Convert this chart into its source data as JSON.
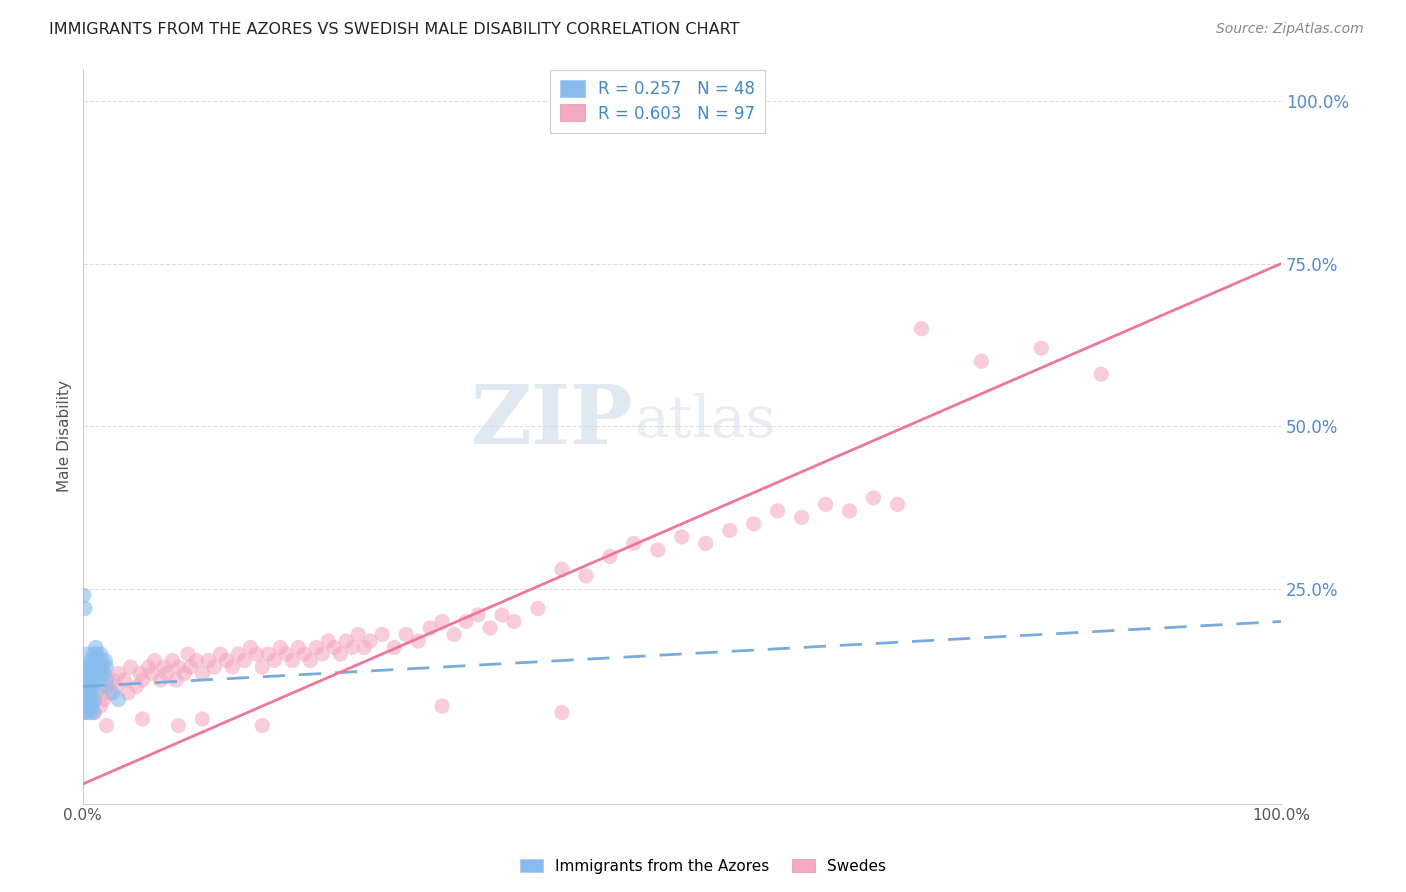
{
  "title": "IMMIGRANTS FROM THE AZORES VS SWEDISH MALE DISABILITY CORRELATION CHART",
  "source": "Source: ZipAtlas.com",
  "ylabel": "Male Disability",
  "legend_label1": "Immigrants from the Azores",
  "legend_label2": "Swedes",
  "r1": 0.257,
  "n1": 48,
  "r2": 0.603,
  "n2": 97,
  "blue_color": "#88bbee",
  "pink_color": "#f4aabe",
  "blue_line_color": "#77aadd",
  "pink_line_color": "#ee7799",
  "blue_line_x0": 0.0,
  "blue_line_y0": 0.1,
  "blue_line_x1": 1.0,
  "blue_line_y1": 0.2,
  "pink_line_x0": 0.0,
  "pink_line_y0": -0.05,
  "pink_line_x1": 1.0,
  "pink_line_y1": 0.75,
  "blue_scatter": [
    [
      0.001,
      0.08
    ],
    [
      0.002,
      0.1
    ],
    [
      0.002,
      0.13
    ],
    [
      0.003,
      0.09
    ],
    [
      0.003,
      0.12
    ],
    [
      0.004,
      0.11
    ],
    [
      0.004,
      0.15
    ],
    [
      0.005,
      0.1
    ],
    [
      0.005,
      0.13
    ],
    [
      0.006,
      0.09
    ],
    [
      0.006,
      0.12
    ],
    [
      0.007,
      0.11
    ],
    [
      0.007,
      0.14
    ],
    [
      0.008,
      0.1
    ],
    [
      0.008,
      0.13
    ],
    [
      0.009,
      0.12
    ],
    [
      0.009,
      0.15
    ],
    [
      0.01,
      0.11
    ],
    [
      0.01,
      0.14
    ],
    [
      0.011,
      0.13
    ],
    [
      0.011,
      0.16
    ],
    [
      0.012,
      0.12
    ],
    [
      0.012,
      0.15
    ],
    [
      0.013,
      0.14
    ],
    [
      0.014,
      0.13
    ],
    [
      0.015,
      0.12
    ],
    [
      0.015,
      0.15
    ],
    [
      0.016,
      0.14
    ],
    [
      0.017,
      0.13
    ],
    [
      0.018,
      0.12
    ],
    [
      0.019,
      0.14
    ],
    [
      0.02,
      0.13
    ],
    [
      0.001,
      0.06
    ],
    [
      0.002,
      0.07
    ],
    [
      0.003,
      0.06
    ],
    [
      0.004,
      0.08
    ],
    [
      0.005,
      0.07
    ],
    [
      0.006,
      0.06
    ],
    [
      0.007,
      0.08
    ],
    [
      0.008,
      0.07
    ],
    [
      0.009,
      0.06
    ],
    [
      0.01,
      0.08
    ],
    [
      0.015,
      0.1
    ],
    [
      0.02,
      0.11
    ],
    [
      0.025,
      0.09
    ],
    [
      0.001,
      0.24
    ],
    [
      0.002,
      0.22
    ],
    [
      0.03,
      0.08
    ]
  ],
  "pink_scatter": [
    [
      0.005,
      0.07
    ],
    [
      0.008,
      0.08
    ],
    [
      0.01,
      0.06
    ],
    [
      0.012,
      0.09
    ],
    [
      0.015,
      0.07
    ],
    [
      0.018,
      0.08
    ],
    [
      0.02,
      0.1
    ],
    [
      0.022,
      0.09
    ],
    [
      0.025,
      0.11
    ],
    [
      0.028,
      0.1
    ],
    [
      0.03,
      0.12
    ],
    [
      0.035,
      0.11
    ],
    [
      0.038,
      0.09
    ],
    [
      0.04,
      0.13
    ],
    [
      0.045,
      0.1
    ],
    [
      0.048,
      0.12
    ],
    [
      0.05,
      0.11
    ],
    [
      0.055,
      0.13
    ],
    [
      0.058,
      0.12
    ],
    [
      0.06,
      0.14
    ],
    [
      0.065,
      0.11
    ],
    [
      0.068,
      0.13
    ],
    [
      0.07,
      0.12
    ],
    [
      0.075,
      0.14
    ],
    [
      0.078,
      0.11
    ],
    [
      0.08,
      0.13
    ],
    [
      0.085,
      0.12
    ],
    [
      0.088,
      0.15
    ],
    [
      0.09,
      0.13
    ],
    [
      0.095,
      0.14
    ],
    [
      0.1,
      0.12
    ],
    [
      0.105,
      0.14
    ],
    [
      0.11,
      0.13
    ],
    [
      0.115,
      0.15
    ],
    [
      0.12,
      0.14
    ],
    [
      0.125,
      0.13
    ],
    [
      0.13,
      0.15
    ],
    [
      0.135,
      0.14
    ],
    [
      0.14,
      0.16
    ],
    [
      0.145,
      0.15
    ],
    [
      0.15,
      0.13
    ],
    [
      0.155,
      0.15
    ],
    [
      0.16,
      0.14
    ],
    [
      0.165,
      0.16
    ],
    [
      0.17,
      0.15
    ],
    [
      0.175,
      0.14
    ],
    [
      0.18,
      0.16
    ],
    [
      0.185,
      0.15
    ],
    [
      0.19,
      0.14
    ],
    [
      0.195,
      0.16
    ],
    [
      0.2,
      0.15
    ],
    [
      0.205,
      0.17
    ],
    [
      0.21,
      0.16
    ],
    [
      0.215,
      0.15
    ],
    [
      0.22,
      0.17
    ],
    [
      0.225,
      0.16
    ],
    [
      0.23,
      0.18
    ],
    [
      0.235,
      0.16
    ],
    [
      0.24,
      0.17
    ],
    [
      0.25,
      0.18
    ],
    [
      0.26,
      0.16
    ],
    [
      0.27,
      0.18
    ],
    [
      0.28,
      0.17
    ],
    [
      0.29,
      0.19
    ],
    [
      0.3,
      0.2
    ],
    [
      0.31,
      0.18
    ],
    [
      0.32,
      0.2
    ],
    [
      0.33,
      0.21
    ],
    [
      0.34,
      0.19
    ],
    [
      0.35,
      0.21
    ],
    [
      0.36,
      0.2
    ],
    [
      0.38,
      0.22
    ],
    [
      0.4,
      0.28
    ],
    [
      0.42,
      0.27
    ],
    [
      0.44,
      0.3
    ],
    [
      0.46,
      0.32
    ],
    [
      0.48,
      0.31
    ],
    [
      0.5,
      0.33
    ],
    [
      0.52,
      0.32
    ],
    [
      0.54,
      0.34
    ],
    [
      0.56,
      0.35
    ],
    [
      0.58,
      0.37
    ],
    [
      0.6,
      0.36
    ],
    [
      0.62,
      0.38
    ],
    [
      0.64,
      0.37
    ],
    [
      0.66,
      0.39
    ],
    [
      0.68,
      0.38
    ],
    [
      0.7,
      0.65
    ],
    [
      0.75,
      0.6
    ],
    [
      0.8,
      0.62
    ],
    [
      0.85,
      0.58
    ],
    [
      0.02,
      0.04
    ],
    [
      0.05,
      0.05
    ],
    [
      0.08,
      0.04
    ],
    [
      0.1,
      0.05
    ],
    [
      0.15,
      0.04
    ],
    [
      0.3,
      0.07
    ],
    [
      0.4,
      0.06
    ]
  ],
  "watermark_line1": "ZIP",
  "watermark_line2": "atlas",
  "bg_color": "#ffffff",
  "grid_color": "#dddddd",
  "xlim": [
    0.0,
    1.0
  ],
  "ylim": [
    -0.08,
    1.05
  ],
  "yticks": [
    0.25,
    0.5,
    0.75,
    1.0
  ],
  "ytick_labels": [
    "25.0%",
    "50.0%",
    "75.0%",
    "100.0%"
  ]
}
